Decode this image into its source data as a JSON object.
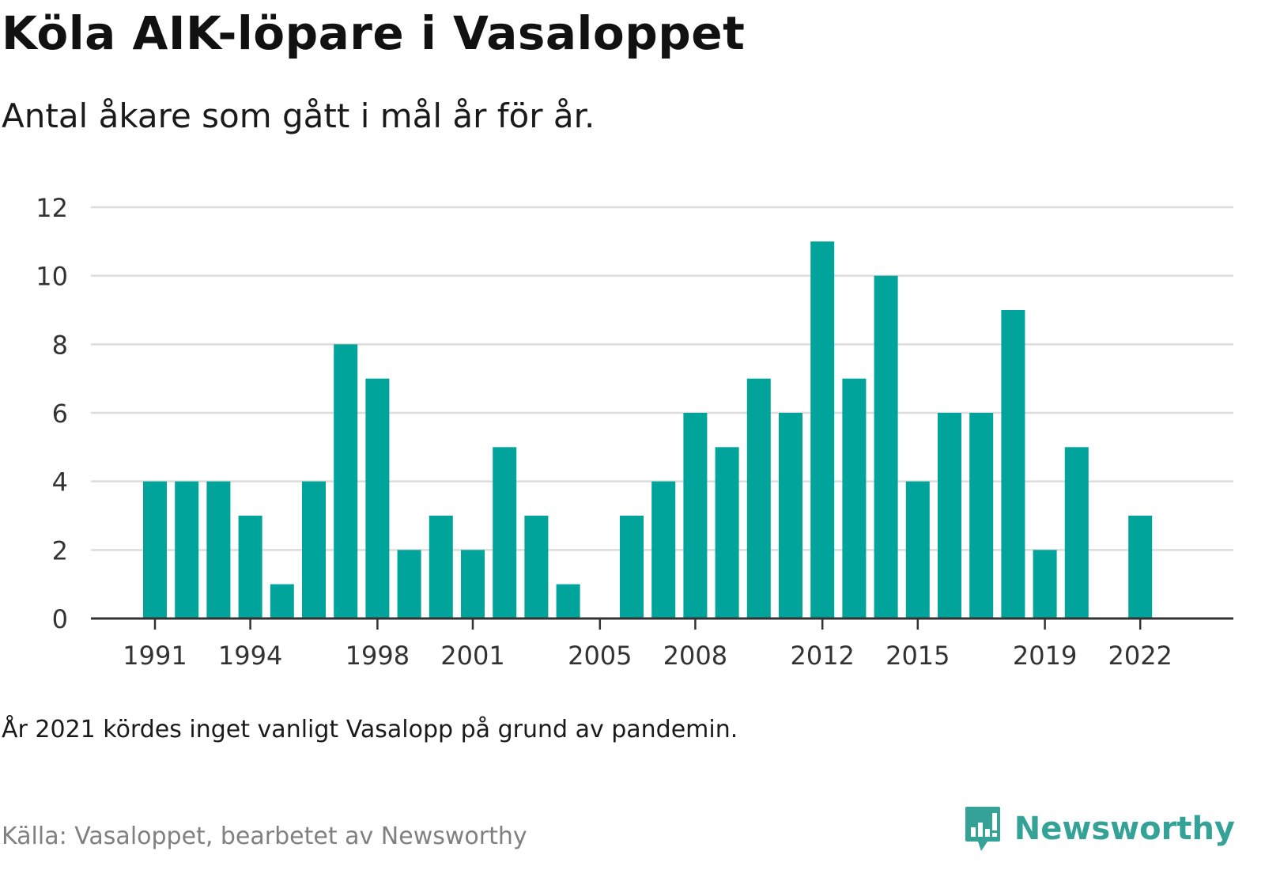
{
  "title": "Köla AIK-löpare i Vasaloppet",
  "subtitle": "Antal åkare som gått i mål år för år.",
  "note": "År 2021 kördes inget vanligt Vasalopp på grund av pandemin.",
  "source": "Källa: Vasaloppet, bearbetet av Newsworthy",
  "brand": {
    "name": "Newsworthy",
    "icon": "newsworthy-logo-icon",
    "color": "#34a297"
  },
  "chart_data": {
    "type": "bar",
    "categories": [
      1991,
      1992,
      1993,
      1994,
      1995,
      1996,
      1997,
      1998,
      1999,
      2000,
      2001,
      2002,
      2003,
      2004,
      2005,
      2006,
      2007,
      2008,
      2009,
      2010,
      2011,
      2012,
      2013,
      2014,
      2015,
      2016,
      2017,
      2018,
      2019,
      2020,
      2021,
      2022
    ],
    "values": [
      4,
      4,
      4,
      3,
      1,
      4,
      8,
      7,
      2,
      3,
      2,
      5,
      3,
      1,
      0,
      3,
      4,
      6,
      5,
      7,
      6,
      11,
      7,
      10,
      4,
      6,
      6,
      9,
      2,
      5,
      0,
      3
    ],
    "xtick_labels": [
      "1991",
      "1994",
      "1998",
      "2001",
      "2005",
      "2008",
      "2012",
      "2015",
      "2019",
      "2022"
    ],
    "yticks": [
      0,
      2,
      4,
      6,
      8,
      10,
      12
    ],
    "ylim": [
      0,
      12
    ],
    "xlabel": "",
    "ylabel": "",
    "bar_color": "#00a49a",
    "grid": true
  }
}
